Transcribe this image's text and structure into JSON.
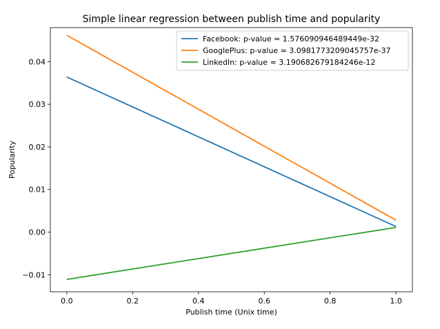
{
  "chart_data": {
    "type": "line",
    "title": "Simple linear regression between publish time and popularity",
    "xlabel": "Publish time (Unix time)",
    "ylabel": "Popularity",
    "xlim": [
      -0.05,
      1.05
    ],
    "ylim": [
      -0.014,
      0.048
    ],
    "x_ticks": [
      0.0,
      0.2,
      0.4,
      0.6,
      0.8,
      1.0
    ],
    "x_tick_labels": [
      "0.0",
      "0.2",
      "0.4",
      "0.6",
      "0.8",
      "1.0"
    ],
    "y_ticks": [
      -0.01,
      0.0,
      0.01,
      0.02,
      0.03,
      0.04
    ],
    "y_tick_labels": [
      "−0.01",
      "0.00",
      "0.01",
      "0.02",
      "0.03",
      "0.04"
    ],
    "grid": false,
    "legend_position": "upper right",
    "series": [
      {
        "name": "Facebook: p-value = 1.576090946489449e-32",
        "color": "#1f77b4",
        "x": [
          0.0,
          1.0
        ],
        "values": [
          0.0364,
          0.0013
        ]
      },
      {
        "name": "GooglePlus: p-value = 3.0981773209045757e-37",
        "color": "#ff7f0e",
        "x": [
          0.0,
          1.0
        ],
        "values": [
          0.0462,
          0.0028
        ]
      },
      {
        "name": "LinkedIn: p-value = 3.190682679184246e-12",
        "color": "#2ca02c",
        "x": [
          0.0,
          1.0
        ],
        "values": [
          -0.0111,
          0.0011
        ]
      }
    ]
  }
}
